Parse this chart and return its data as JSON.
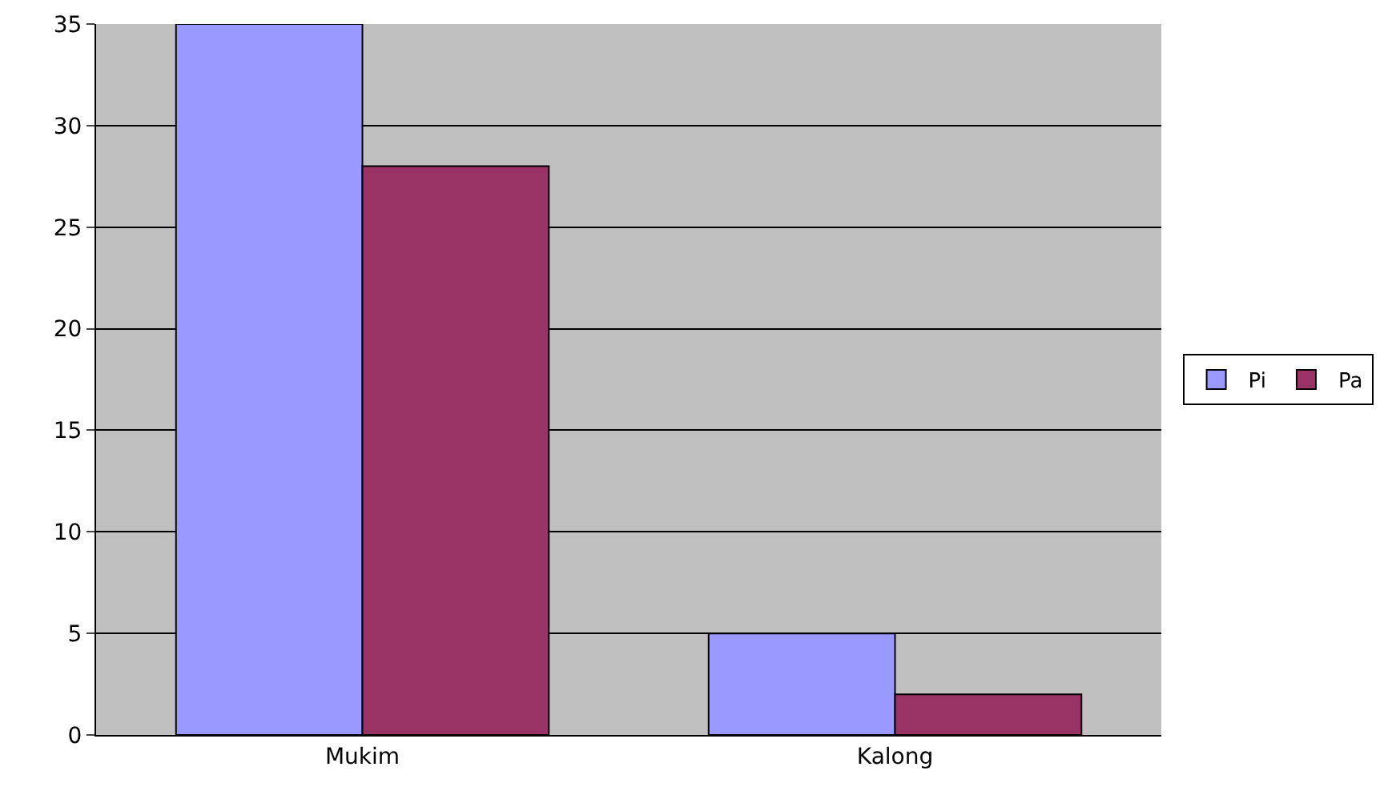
{
  "chart_data": {
    "type": "bar",
    "categories": [
      "Mukim",
      "Kalong"
    ],
    "series": [
      {
        "name": "Pi",
        "color": "#9999ff",
        "values": [
          35,
          5
        ]
      },
      {
        "name": "Pa",
        "color": "#993366",
        "values": [
          28,
          2
        ]
      }
    ],
    "ylim": [
      0,
      35
    ],
    "yticks": [
      0,
      5,
      10,
      15,
      20,
      25,
      30,
      35
    ],
    "grid": "y",
    "legend": "right"
  }
}
